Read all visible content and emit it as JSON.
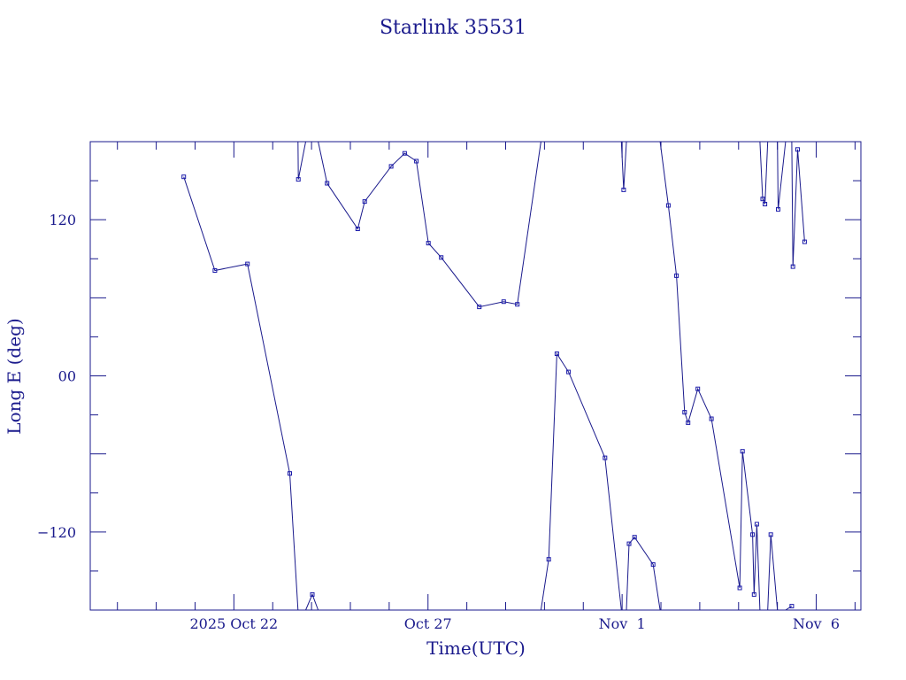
{
  "chart_data": {
    "type": "line",
    "title": "Starlink 35531",
    "xlabel": "Time(UTC)",
    "ylabel": "Long E (deg)",
    "xlim_days_from_oct20": [
      -1.7,
      18.15
    ],
    "ylim": [
      -180,
      180
    ],
    "x_tick_labels": [
      {
        "label": "2025 Oct 22",
        "day": 2
      },
      {
        "label": "Oct 27",
        "day": 7
      },
      {
        "label": "Nov  1",
        "day": 12
      },
      {
        "label": "Nov  6",
        "day": 17
      }
    ],
    "y_ticks": [
      -120,
      0,
      120
    ],
    "y_tick_labels": [
      "−120",
      "00",
      "120"
    ],
    "grid": false,
    "segments": [
      [
        [
          0.71,
          153
        ],
        [
          1.51,
          81
        ],
        [
          2.35,
          86
        ],
        [
          3.44,
          -75
        ],
        [
          3.65,
          -180
        ]
      ],
      [
        [
          3.65,
          180
        ],
        [
          3.66,
          151
        ],
        [
          3.85,
          180
        ]
      ],
      [
        [
          3.85,
          -180
        ],
        [
          4.02,
          -168
        ],
        [
          4.17,
          -180
        ]
      ],
      [
        [
          4.17,
          180
        ],
        [
          4.4,
          148
        ],
        [
          5.19,
          113
        ],
        [
          5.37,
          134
        ],
        [
          6.05,
          161
        ],
        [
          6.4,
          171
        ],
        [
          6.7,
          165
        ],
        [
          7.01,
          102
        ],
        [
          7.34,
          91
        ],
        [
          8.32,
          53
        ],
        [
          8.95,
          57
        ],
        [
          9.3,
          55
        ],
        [
          9.91,
          180
        ]
      ],
      [
        [
          9.91,
          -180
        ],
        [
          10.11,
          -141
        ],
        [
          10.32,
          17
        ],
        [
          10.62,
          3
        ],
        [
          11.56,
          -63
        ],
        [
          11.98,
          -180
        ]
      ],
      [
        [
          11.98,
          180
        ],
        [
          12.04,
          143
        ],
        [
          12.11,
          180
        ]
      ],
      [
        [
          12.11,
          -180
        ],
        [
          12.18,
          -129
        ],
        [
          12.32,
          -124
        ],
        [
          12.8,
          -145
        ],
        [
          12.98,
          -180
        ]
      ],
      [
        [
          12.98,
          180
        ],
        [
          13.19,
          131
        ],
        [
          13.4,
          77
        ],
        [
          13.61,
          -28
        ],
        [
          13.7,
          -36
        ],
        [
          13.95,
          -10
        ],
        [
          14.3,
          -33
        ],
        [
          15.03,
          -163
        ],
        [
          15.1,
          -58
        ],
        [
          15.36,
          -122
        ],
        [
          15.4,
          -168
        ],
        [
          15.47,
          -114
        ],
        [
          15.55,
          -180
        ]
      ],
      [
        [
          15.55,
          180
        ],
        [
          15.62,
          136
        ],
        [
          15.68,
          132
        ],
        [
          15.75,
          180
        ]
      ],
      [
        [
          15.75,
          -180
        ],
        [
          15.83,
          -122
        ],
        [
          16.0,
          -180
        ]
      ],
      [
        [
          16.0,
          180
        ],
        [
          16.02,
          128
        ],
        [
          16.21,
          180
        ]
      ],
      [
        [
          16.21,
          -180
        ],
        [
          16.37,
          -177
        ]
      ],
      [
        [
          16.37,
          180
        ],
        [
          16.4,
          84
        ],
        [
          16.52,
          174
        ],
        [
          16.7,
          103
        ]
      ]
    ]
  }
}
